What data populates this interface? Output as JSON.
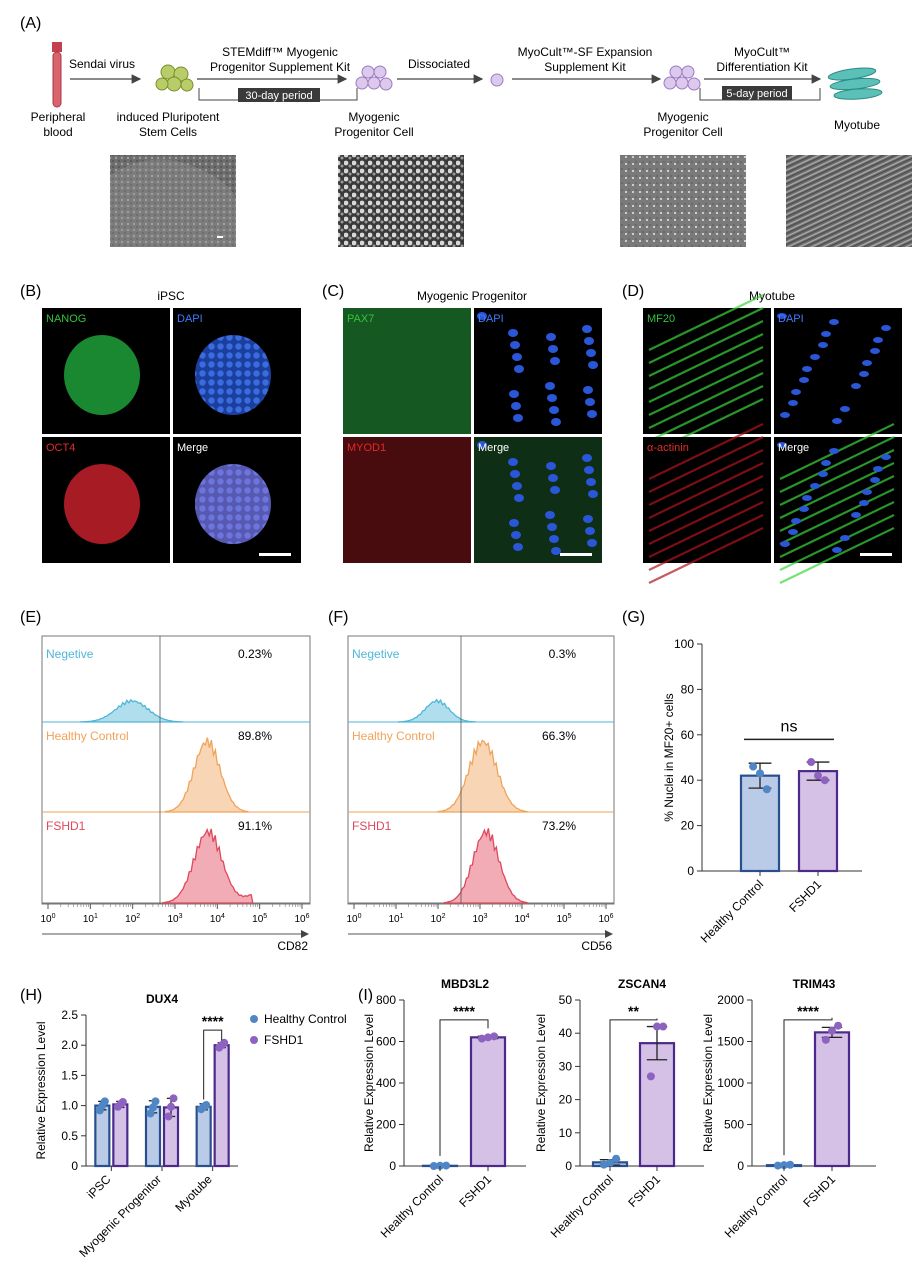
{
  "panel_letters": {
    "A": "(A)",
    "B": "(B)",
    "C": "(C)",
    "D": "(D)",
    "E": "(E)",
    "F": "(F)",
    "G": "(G)",
    "H": "(H)",
    "I": "(I)"
  },
  "workflow": {
    "stage_labels": {
      "blood": [
        "Peripheral",
        "blood"
      ],
      "ipsc": [
        "induced Pluripotent",
        "Stem Cells"
      ],
      "mpc1": [
        "Myogenic",
        "Progenitor Cell"
      ],
      "mpc2": [
        "Myogenic",
        "Progenitor Cell"
      ],
      "myotube": [
        "Myotube"
      ]
    },
    "steps": {
      "sendai": "Sendai virus",
      "kit1": [
        "STEMdiff™ Myogenic",
        "Progenitor Supplement Kit"
      ],
      "period1": "30-day period",
      "dissociated": "Dissociated",
      "kit2": [
        "MyoCult™-SF Expansion",
        "Supplement Kit"
      ],
      "kit3": [
        "MyoCult™",
        "Differentiation Kit"
      ],
      "period2": "5-day period"
    }
  },
  "if_panels": {
    "B": {
      "title": "iPSC",
      "labels": [
        "NANOG",
        "DAPI",
        "OCT4",
        "Merge"
      ]
    },
    "C": {
      "title": "Myogenic Progenitor",
      "labels": [
        "PAX7",
        "DAPI",
        "MYOD1",
        "Merge"
      ]
    },
    "D": {
      "title": "Myotube",
      "labels": [
        "MF20",
        "DAPI",
        "α-actinin",
        "Merge"
      ]
    }
  },
  "colors": {
    "negative": "#4fb6d8",
    "healthy": "#f0a35a",
    "fshd": "#e0485c",
    "hc_bar": "#b9cbe6",
    "hc_edge": "#2a4f8f",
    "fs_bar": "#d5c0e6",
    "fs_edge": "#4b2a8c",
    "hc_dot": "#4f86c6",
    "fs_dot": "#8e63c0"
  },
  "flow": {
    "E": {
      "xlabel": "CD82",
      "rows": [
        {
          "name": "Negetive",
          "pct": "0.23%"
        },
        {
          "name": "Healthy Control",
          "pct": "89.8%"
        },
        {
          "name": "FSHD1",
          "pct": "91.1%"
        }
      ]
    },
    "F": {
      "xlabel": "CD56",
      "rows": [
        {
          "name": "Negetive",
          "pct": "0.3%"
        },
        {
          "name": "Healthy Control",
          "pct": "66.3%"
        },
        {
          "name": "FSHD1",
          "pct": "73.2%"
        }
      ]
    },
    "exponents": [
      "0",
      "1",
      "2",
      "3",
      "4",
      "5",
      "6"
    ]
  },
  "chart_data": [
    {
      "panel": "G",
      "type": "bar",
      "title": "",
      "ylabel": "% Nuclei in MF20+ cells",
      "ylim": [
        0,
        100
      ],
      "yticks": [
        0,
        20,
        40,
        60,
        80,
        100
      ],
      "categories": [
        "Healthy Control",
        "FSHD1"
      ],
      "values": [
        42,
        44
      ],
      "errors": [
        5.5,
        4
      ],
      "points": [
        [
          46,
          43,
          36
        ],
        [
          48,
          42,
          40
        ]
      ],
      "significance": "ns"
    },
    {
      "panel": "H",
      "type": "bar",
      "title": "DUX4",
      "ylabel": "Relative Expression Level",
      "ylim": [
        0,
        2.5
      ],
      "yticks": [
        0,
        0.5,
        1.0,
        1.5,
        2.0,
        2.5
      ],
      "categories": [
        "iPSC",
        "Myogenic Progenitor",
        "Myotube"
      ],
      "series": [
        {
          "name": "Healthy Control",
          "values": [
            1.0,
            0.98,
            0.98
          ],
          "errors": [
            0.07,
            0.1,
            0.05
          ],
          "points": [
            [
              0.92,
              1.0,
              1.07
            ],
            [
              0.87,
              0.97,
              1.07
            ],
            [
              0.94,
              0.98,
              1.01
            ]
          ]
        },
        {
          "name": "FSHD1",
          "values": [
            1.02,
            0.97,
            2.0
          ],
          "errors": [
            0.05,
            0.15,
            0.04
          ],
          "points": [
            [
              0.98,
              1.02,
              1.06
            ],
            [
              0.82,
              0.98,
              1.12
            ],
            [
              1.96,
              2.0,
              2.04
            ]
          ]
        }
      ],
      "significance": "****"
    },
    {
      "panel": "I1",
      "type": "bar",
      "title": "MBD3L2",
      "ylabel": "Relative Expression Level",
      "ylim": [
        0,
        800
      ],
      "yticks": [
        0,
        200,
        400,
        600,
        800
      ],
      "categories": [
        "Healthy Control",
        "FSHD1"
      ],
      "values": [
        1,
        620
      ],
      "errors": [
        3,
        6
      ],
      "points": [
        [
          0,
          1,
          2
        ],
        [
          614,
          620,
          625
        ]
      ],
      "significance": "****"
    },
    {
      "panel": "I2",
      "type": "bar",
      "title": "ZSCAN4",
      "ylabel": "Relative Expression Level",
      "ylim": [
        0,
        50
      ],
      "yticks": [
        0,
        10,
        20,
        30,
        40,
        50
      ],
      "categories": [
        "Healthy Control",
        "FSHD1"
      ],
      "values": [
        1.1,
        37
      ],
      "errors": [
        0.8,
        5
      ],
      "points": [
        [
          0.4,
          0.9,
          2.2
        ],
        [
          27,
          42,
          42
        ]
      ],
      "significance": "**"
    },
    {
      "panel": "I3",
      "type": "bar",
      "title": "TRIM43",
      "ylabel": "Relative Expression Level",
      "ylim": [
        0,
        2000
      ],
      "yticks": [
        0,
        500,
        1000,
        1500,
        2000
      ],
      "categories": [
        "Healthy Control",
        "FSHD1"
      ],
      "values": [
        10,
        1610
      ],
      "errors": [
        5,
        60
      ],
      "points": [
        [
          5,
          10,
          15
        ],
        [
          1520,
          1630,
          1690
        ]
      ],
      "significance": "****"
    }
  ]
}
